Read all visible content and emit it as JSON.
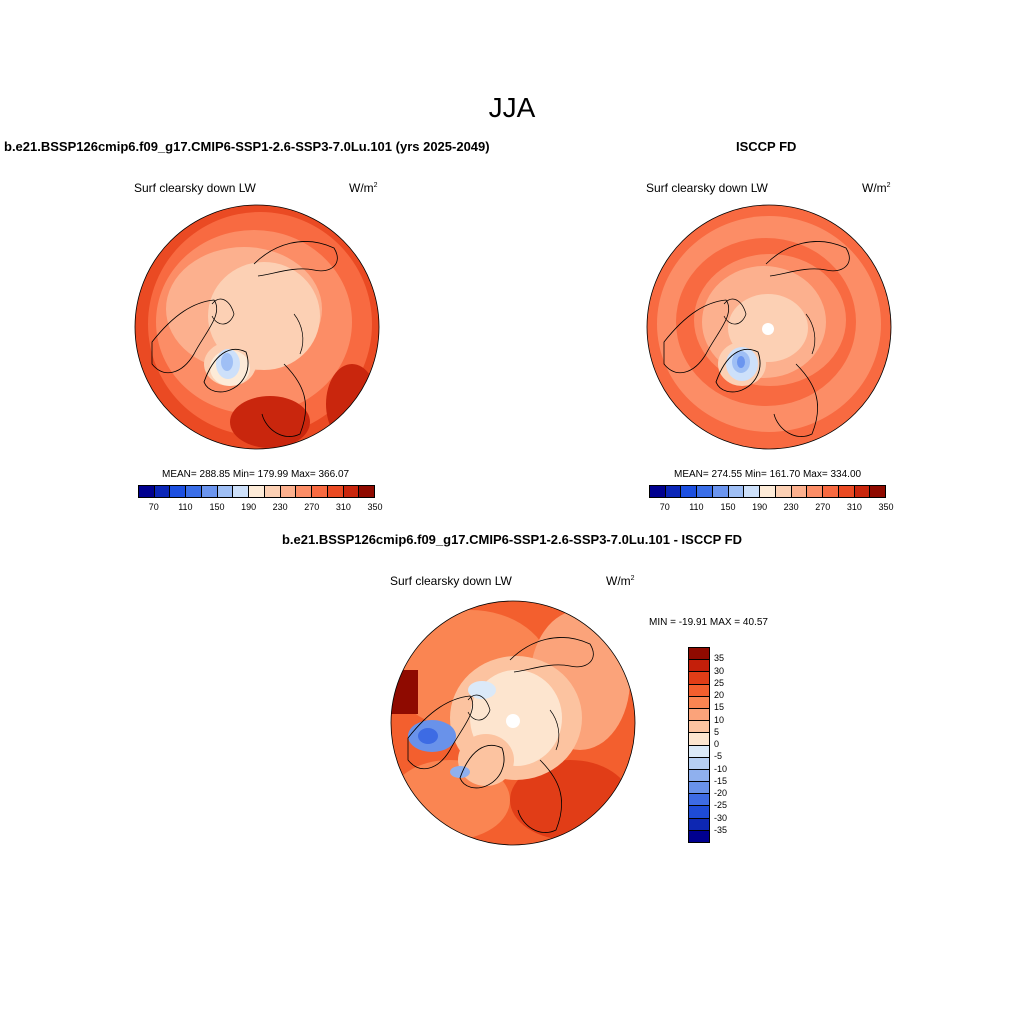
{
  "main_title": "JJA",
  "panels": [
    {
      "title": "b.e21.BSSP126cmip6.f09_g17.CMIP6-SSP1-2.6-SSP3-7.0Lu.101 (yrs 2025-2049)",
      "variable": "Surf clearsky down LW",
      "units": "W/m",
      "units_exp": "2",
      "stats": "MEAN= 288.85  Min= 179.99  Max= 366.07"
    },
    {
      "title": "ISCCP FD",
      "variable": "Surf clearsky down LW",
      "units": "W/m",
      "units_exp": "2",
      "stats": "MEAN= 274.55  Min= 161.70  Max= 334.00"
    },
    {
      "title": "b.e21.BSSP126cmip6.f09_g17.CMIP6-SSP1-2.6-SSP3-7.0Lu.101 - ISCCP FD",
      "variable": "Surf clearsky down LW",
      "units": "W/m",
      "units_exp": "2",
      "stats": "MIN = -19.91 MAX =  40.57"
    }
  ],
  "abs_colorbar": {
    "colors": [
      "#00008f",
      "#0b26b8",
      "#1c4fe0",
      "#3a6ee8",
      "#6b95ef",
      "#9fbff5",
      "#cde0fa",
      "#fdebd8",
      "#fcd0b4",
      "#fcb08e",
      "#fc8d66",
      "#f86a41",
      "#ea4a23",
      "#c9260d",
      "#8f0a00"
    ],
    "tick_labels": [
      "70",
      "110",
      "150",
      "190",
      "230",
      "270",
      "310",
      "350"
    ]
  },
  "diff_colorbar": {
    "colors": [
      "#8f0a00",
      "#c41f0a",
      "#e13d17",
      "#f35f2e",
      "#fa8552",
      "#fba37a",
      "#fcc3a0",
      "#fde5cf",
      "#dbe9f8",
      "#b6cff3",
      "#8fb0ee",
      "#6992ea",
      "#3d6be4",
      "#1e4bd6",
      "#0d27b2",
      "#00008f"
    ],
    "tick_labels": [
      "35",
      "30",
      "25",
      "20",
      "15",
      "10",
      "5",
      "0",
      "-5",
      "-10",
      "-15",
      "-20",
      "-25",
      "-30",
      "-35"
    ]
  },
  "colors": {
    "ocean_red": "#f05a35",
    "coastline": "#000000"
  }
}
